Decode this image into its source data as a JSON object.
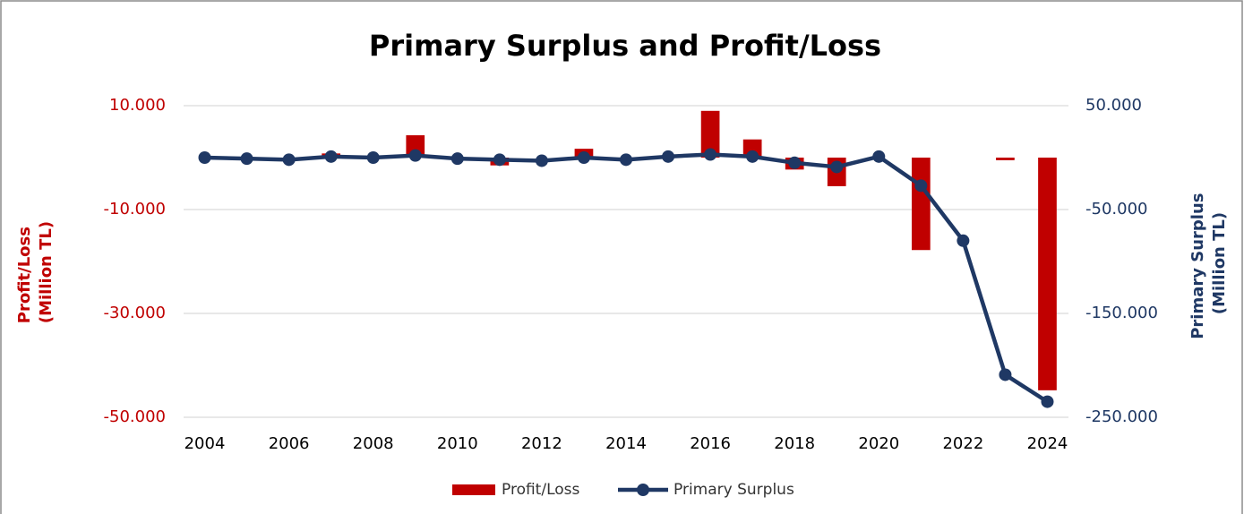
{
  "chart_data": {
    "type": "bar_line",
    "title": "Primary Surplus and Profit/Loss",
    "ylabel": [
      "Profit/Loss",
      "(Million TL)"
    ],
    "y2label": [
      "Primary Surplus",
      "(Million TL)"
    ],
    "x": [
      2004,
      2005,
      2006,
      2007,
      2008,
      2009,
      2010,
      2011,
      2012,
      2013,
      2014,
      2015,
      2016,
      2017,
      2018,
      2019,
      2020,
      2021,
      2022,
      2023,
      2024
    ],
    "xlim": [
      2004,
      2024
    ],
    "xticks": [
      2004,
      2006,
      2008,
      2010,
      2012,
      2014,
      2016,
      2018,
      2020,
      2022,
      2024
    ],
    "ylim": [
      -50000,
      10000
    ],
    "yticks": [
      {
        "value": 10000,
        "label": "10.000"
      },
      {
        "value": -10000,
        "label": "-10.000"
      },
      {
        "value": -30000,
        "label": "-30.000"
      },
      {
        "value": -50000,
        "label": "-50.000"
      }
    ],
    "y2lim": [
      -250000,
      50000
    ],
    "y2ticks": [
      {
        "value": 50000,
        "label": "50.000"
      },
      {
        "value": -50000,
        "label": "-50.000"
      },
      {
        "value": -150000,
        "label": "-150.000"
      },
      {
        "value": -250000,
        "label": "-250.000"
      }
    ],
    "grid": true,
    "legend": "bottom",
    "series": [
      {
        "name": "Profit/Loss",
        "type": "bar",
        "color": "#c00000",
        "values": [
          0,
          0,
          0,
          800,
          0,
          4300,
          0,
          -1500,
          0,
          1700,
          0,
          0,
          9000,
          3500,
          -2300,
          -5500,
          0,
          -17800,
          0,
          -500,
          -44800
        ]
      },
      {
        "name": "Primary Surplus",
        "type": "line",
        "axis": "y2",
        "color": "#1f3864",
        "values": [
          0,
          -1000,
          -2000,
          1000,
          0,
          2000,
          -1000,
          -2000,
          -3000,
          0,
          -2000,
          1000,
          3000,
          1000,
          -5000,
          -9000,
          1000,
          -27000,
          -80000,
          -209000,
          -235000
        ]
      }
    ]
  }
}
